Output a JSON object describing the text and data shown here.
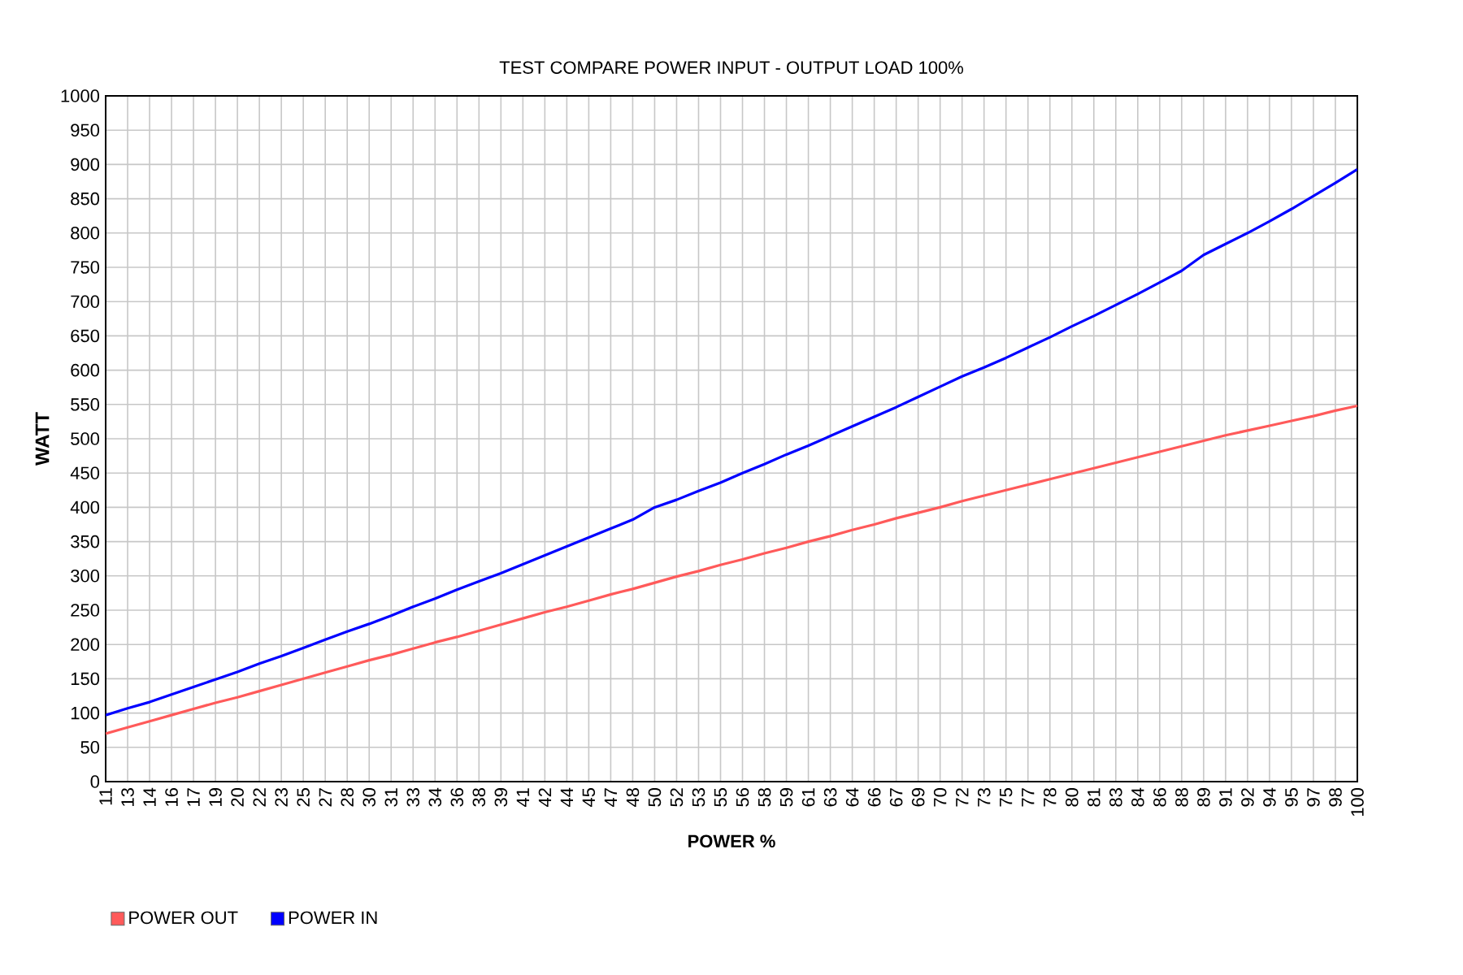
{
  "chart_data": {
    "type": "line",
    "title": "TEST COMPARE POWER INPUT - OUTPUT LOAD 100%",
    "xlabel": "POWER %",
    "ylabel": "WATT",
    "categories": [
      "11",
      "13",
      "14",
      "16",
      "17",
      "19",
      "20",
      "22",
      "23",
      "25",
      "27",
      "28",
      "30",
      "31",
      "33",
      "34",
      "36",
      "38",
      "39",
      "41",
      "42",
      "44",
      "45",
      "47",
      "48",
      "50",
      "52",
      "53",
      "55",
      "56",
      "58",
      "59",
      "61",
      "63",
      "64",
      "66",
      "67",
      "69",
      "70",
      "72",
      "73",
      "75",
      "77",
      "78",
      "80",
      "81",
      "83",
      "84",
      "86",
      "88",
      "89",
      "91",
      "92",
      "94",
      "95",
      "97",
      "98",
      "100"
    ],
    "series": [
      {
        "name": "POWER OUT",
        "color": "#ff5a5a",
        "values": [
          70,
          79,
          88,
          97,
          106,
          115,
          123,
          132,
          141,
          150,
          159,
          168,
          177,
          185,
          194,
          203,
          211,
          220,
          229,
          238,
          247,
          255,
          264,
          273,
          281,
          290,
          299,
          307,
          316,
          324,
          333,
          341,
          350,
          358,
          367,
          375,
          384,
          392,
          400,
          409,
          417,
          425,
          433,
          441,
          449,
          457,
          465,
          473,
          481,
          489,
          497,
          505,
          512,
          519,
          526,
          533,
          541,
          548
        ]
      },
      {
        "name": "POWER IN",
        "color": "#0000ff",
        "values": [
          97,
          107,
          116,
          127,
          138,
          149,
          160,
          172,
          183,
          195,
          207,
          219,
          230,
          242,
          255,
          267,
          280,
          292,
          304,
          317,
          330,
          343,
          356,
          369,
          382,
          400,
          411,
          424,
          436,
          450,
          463,
          477,
          490,
          504,
          518,
          532,
          546,
          561,
          576,
          591,
          604,
          618,
          633,
          648,
          664,
          679,
          695,
          711,
          728,
          745,
          768,
          784,
          800,
          817,
          835,
          854,
          873,
          893
        ]
      }
    ],
    "ylim": [
      0,
      1000
    ],
    "yticks": [
      0,
      50,
      100,
      150,
      200,
      250,
      300,
      350,
      400,
      450,
      500,
      550,
      600,
      650,
      700,
      750,
      800,
      850,
      900,
      950,
      1000
    ],
    "grid": true,
    "legend": "bottom left"
  }
}
